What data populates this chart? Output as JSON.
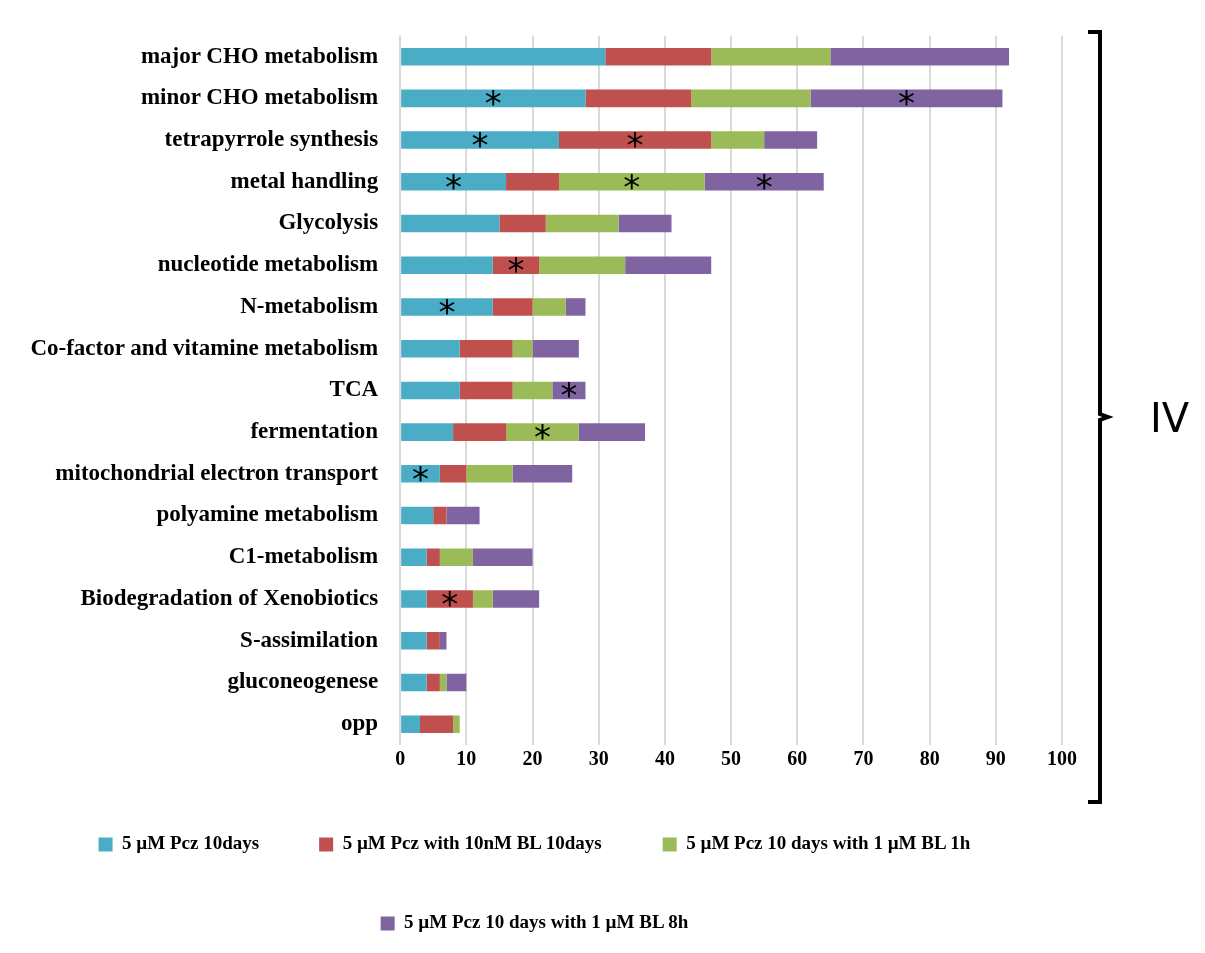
{
  "chart_data": {
    "type": "bar",
    "orientation": "horizontal",
    "stacked": true,
    "categories": [
      "major CHO metabolism",
      "minor CHO metabolism",
      "tetrapyrrole synthesis",
      "metal handling",
      "Glycolysis",
      "nucleotide metabolism",
      "N-metabolism",
      "Co-factor and vitamine metabolism",
      "TCA",
      "fermentation",
      "mitochondrial electron transport",
      "polyamine metabolism",
      "C1-metabolism",
      "Biodegradation of Xenobiotics",
      "S-assimilation",
      "gluconeogenese",
      "opp"
    ],
    "series": [
      {
        "name": "5 µM Pcz 10days",
        "color": "#4bacc6",
        "values": [
          31,
          28,
          24,
          16,
          15,
          14,
          14,
          9,
          9,
          8,
          6,
          5,
          4,
          4,
          4,
          4,
          3
        ],
        "value_labels": [
          null,
          "*",
          "*",
          "*",
          null,
          null,
          "*",
          null,
          null,
          null,
          "*",
          null,
          null,
          null,
          null,
          null,
          null
        ]
      },
      {
        "name": "5 µM Pcz with 10nM BL 10days",
        "color": "#c0504d",
        "values": [
          16,
          16,
          23,
          8,
          7,
          7,
          6,
          8,
          8,
          8,
          4,
          2,
          2,
          7,
          2,
          2,
          5
        ],
        "value_labels": [
          null,
          null,
          "*",
          null,
          null,
          "*",
          null,
          null,
          null,
          null,
          null,
          null,
          null,
          "*",
          null,
          null,
          null
        ]
      },
      {
        "name": "5 µM Pcz 10 days with 1 µM BL 1h",
        "color": "#9bbb59",
        "values": [
          18,
          18,
          8,
          22,
          11,
          13,
          5,
          3,
          6,
          11,
          7,
          0,
          5,
          3,
          0,
          1,
          1
        ],
        "value_labels": [
          null,
          null,
          null,
          "*",
          null,
          null,
          null,
          null,
          null,
          "*",
          null,
          null,
          null,
          null,
          null,
          null,
          null
        ]
      },
      {
        "name": "5 µM Pcz 10 days with 1 µM BL 8h",
        "color": "#8064a2",
        "values": [
          27,
          29,
          8,
          18,
          8,
          13,
          3,
          7,
          5,
          10,
          9,
          5,
          9,
          7,
          1,
          3,
          0
        ],
        "value_labels": [
          null,
          "*",
          null,
          "*",
          null,
          null,
          null,
          null,
          "*",
          null,
          null,
          null,
          null,
          null,
          null,
          null,
          null
        ]
      }
    ],
    "xlim": [
      0,
      100
    ],
    "xticks": [
      0,
      10,
      20,
      30,
      40,
      50,
      60,
      70,
      80,
      90,
      100
    ],
    "grid": "x",
    "legend": "bottom",
    "annotations": [
      "IV"
    ]
  }
}
